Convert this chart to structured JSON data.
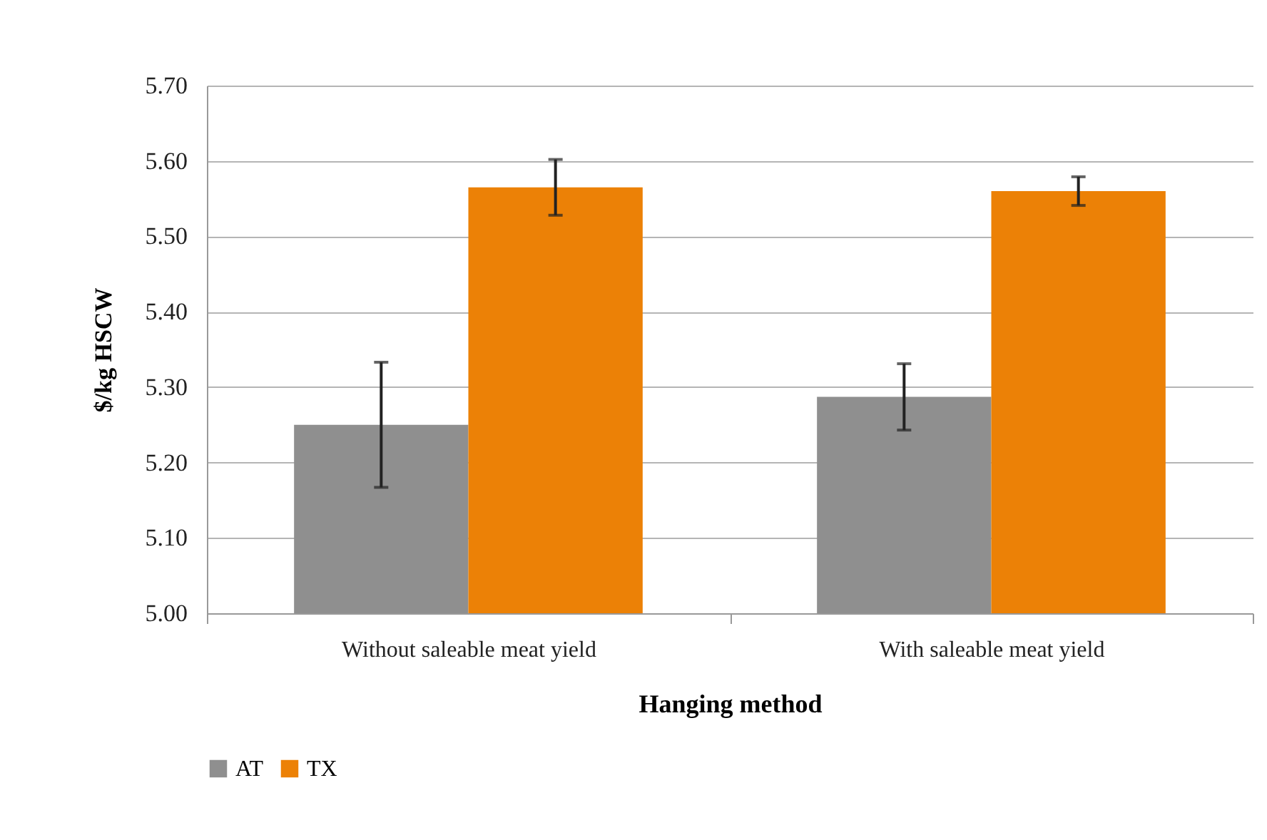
{
  "chart_data": {
    "type": "bar",
    "xlabel": "Hanging method",
    "ylabel": "$/kg HSCW",
    "categories": [
      "Without saleable meat yield",
      "With saleable meat yield"
    ],
    "series": [
      {
        "name": "AT",
        "color": "#8f8f8f",
        "values": [
          5.25,
          5.287
        ],
        "errors": [
          0.083,
          0.044
        ]
      },
      {
        "name": "TX",
        "color": "#ec8106",
        "values": [
          5.565,
          5.56
        ],
        "errors": [
          0.037,
          0.019
        ]
      }
    ],
    "ylim": [
      5.0,
      5.7
    ],
    "yticks": [
      {
        "value": 5.0,
        "label": "5.00"
      },
      {
        "value": 5.1,
        "label": "5.10"
      },
      {
        "value": 5.2,
        "label": "5.20"
      },
      {
        "value": 5.3,
        "label": "5.30"
      },
      {
        "value": 5.4,
        "label": "5.40"
      },
      {
        "value": 5.5,
        "label": "5.50"
      },
      {
        "value": 5.6,
        "label": "5.60"
      },
      {
        "value": 5.7,
        "label": "5.70"
      }
    ],
    "grid": "y",
    "legend": "bottom"
  }
}
